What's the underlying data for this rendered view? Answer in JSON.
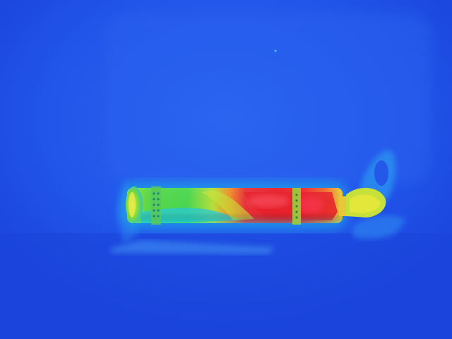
{
  "image": {
    "type": "thermal-image",
    "palette": "rainbow",
    "subject": "cylinder-heat-pattern",
    "colors": {
      "background": "#1f4fe6",
      "cool_highlight": "#2a6cf2",
      "cyan": "#22c8e6",
      "green": "#48d846",
      "yellow": "#d8e83a",
      "orange": "#f08a2a",
      "red": "#e8202c",
      "hot": "#ff5060"
    }
  }
}
